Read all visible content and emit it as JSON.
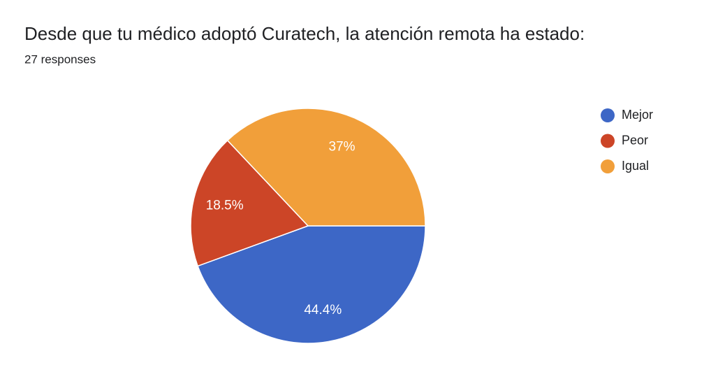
{
  "chart_data": {
    "type": "pie",
    "title": "Desde que tu médico adoptó Curatech, la atención remota ha estado:",
    "subtitle": "27 responses",
    "categories": [
      "Mejor",
      "Peor",
      "Igual"
    ],
    "values": [
      44.4,
      18.5,
      37
    ],
    "value_labels": [
      "44.4%",
      "18.5%",
      "37%"
    ],
    "colors": [
      "#3d67c6",
      "#cc4527",
      "#f19f3a"
    ],
    "legend": "right"
  }
}
